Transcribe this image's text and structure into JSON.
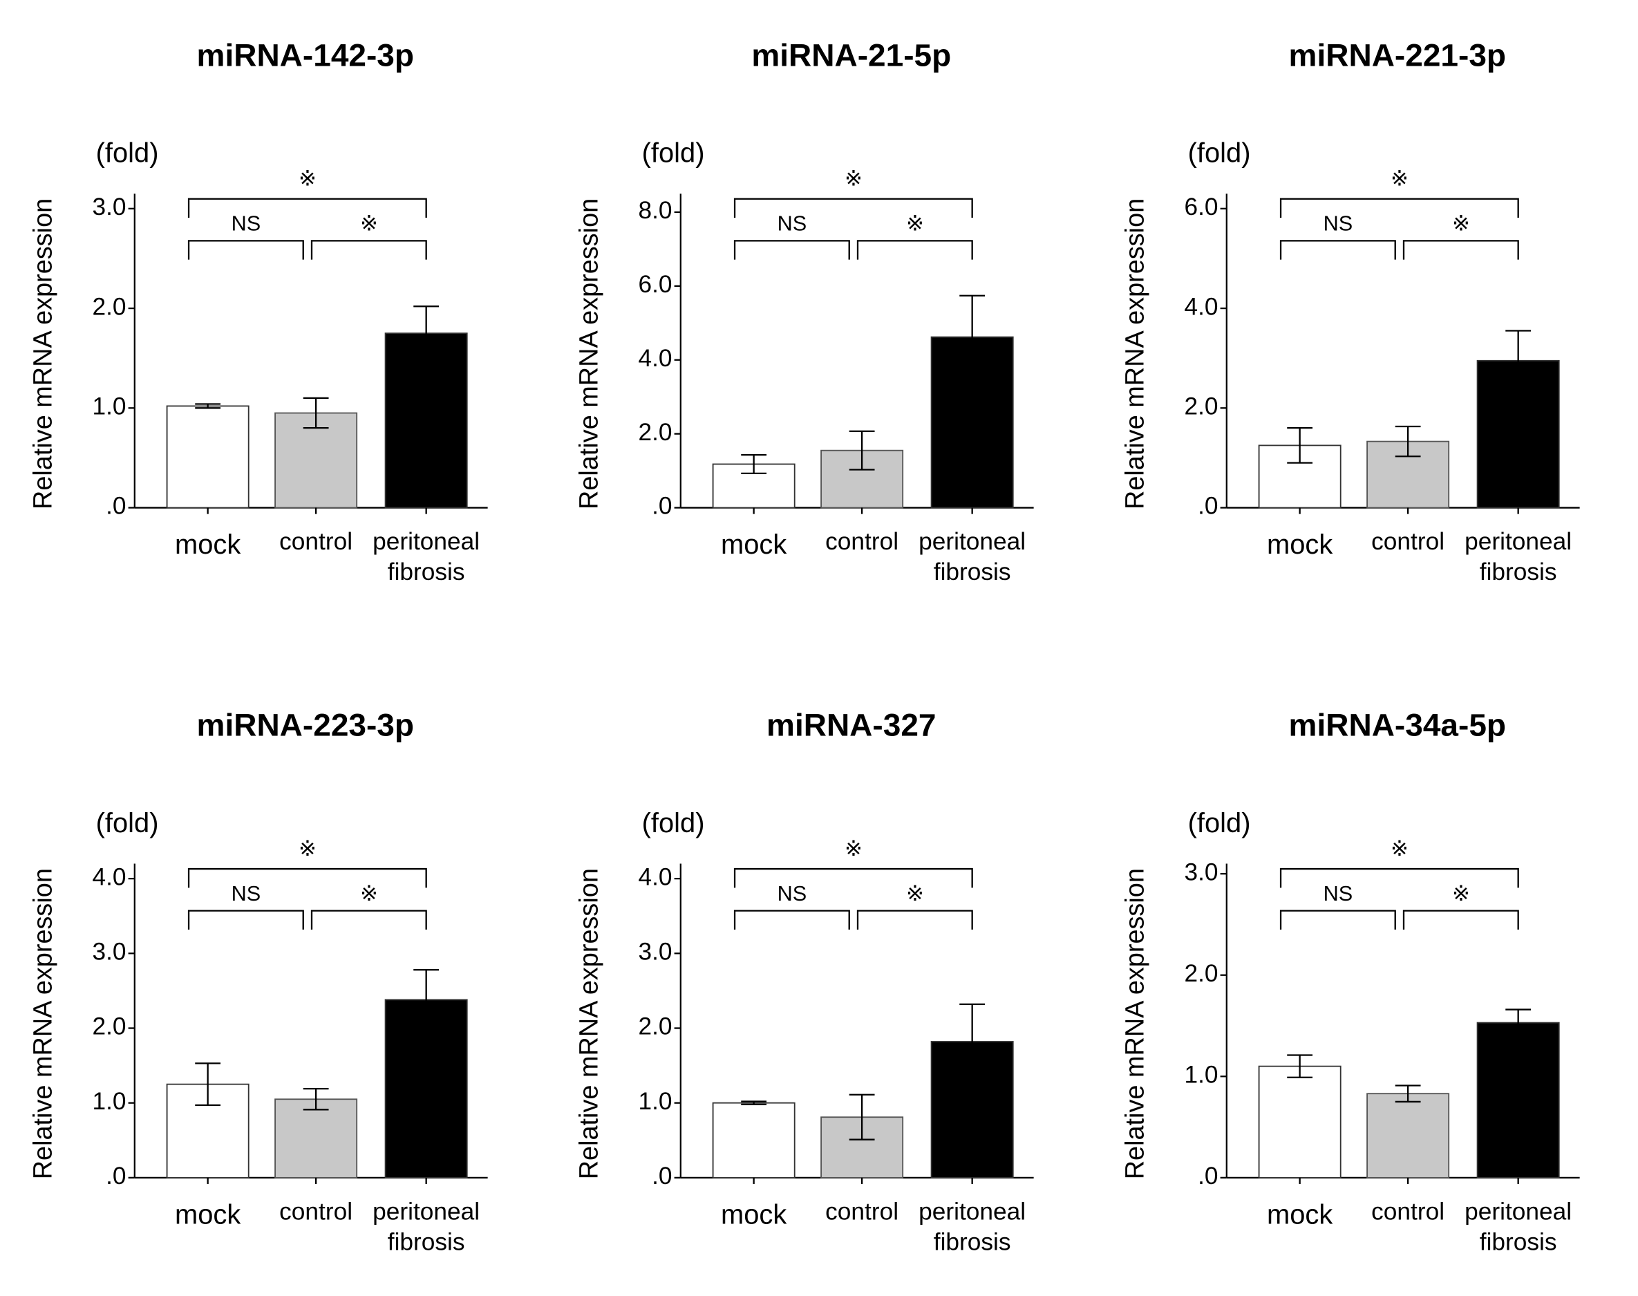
{
  "chart_data": [
    {
      "type": "bar",
      "title": "miRNA-142-3p",
      "unit": "(fold)",
      "ylabel": "Relative mRNA expression",
      "categories": [
        "mock",
        "control",
        "peritoneal fibrosis"
      ],
      "colors": [
        "#ffffff",
        "#c8c8c8",
        "#000000"
      ],
      "values": [
        1.02,
        0.95,
        1.75
      ],
      "errors": [
        0.02,
        0.15,
        0.27
      ],
      "ylim": [
        0,
        3.15
      ],
      "yticks": [
        {
          "value": 0,
          "label": ".0"
        },
        {
          "value": 1,
          "label": "1.0"
        },
        {
          "value": 2,
          "label": "2.0"
        },
        {
          "value": 3,
          "label": "3.0"
        }
      ],
      "annotations": [
        "NS",
        "※",
        "※"
      ]
    },
    {
      "type": "bar",
      "title": "miRNA-21-5p",
      "unit": "(fold)",
      "ylabel": "Relative mRNA expression",
      "categories": [
        "mock",
        "control",
        "peritoneal fibrosis"
      ],
      "colors": [
        "#ffffff",
        "#c8c8c8",
        "#000000"
      ],
      "values": [
        1.18,
        1.55,
        4.62
      ],
      "errors": [
        0.25,
        0.52,
        1.12
      ],
      "ylim": [
        0,
        8.5
      ],
      "yticks": [
        {
          "value": 0,
          "label": ".0"
        },
        {
          "value": 2,
          "label": "2.0"
        },
        {
          "value": 4,
          "label": "4.0"
        },
        {
          "value": 6,
          "label": "6.0"
        },
        {
          "value": 8,
          "label": "8.0"
        }
      ],
      "annotations": [
        "NS",
        "※",
        "※"
      ]
    },
    {
      "type": "bar",
      "title": "miRNA-221-3p",
      "unit": "(fold)",
      "ylabel": "Relative mRNA expression",
      "categories": [
        "mock",
        "control",
        "peritoneal fibrosis"
      ],
      "colors": [
        "#ffffff",
        "#c8c8c8",
        "#000000"
      ],
      "values": [
        1.25,
        1.33,
        2.95
      ],
      "errors": [
        0.35,
        0.3,
        0.6
      ],
      "ylim": [
        0,
        6.3
      ],
      "yticks": [
        {
          "value": 0,
          "label": ".0"
        },
        {
          "value": 2,
          "label": "2.0"
        },
        {
          "value": 4,
          "label": "4.0"
        },
        {
          "value": 6,
          "label": "6.0"
        }
      ],
      "annotations": [
        "NS",
        "※",
        "※"
      ]
    },
    {
      "type": "bar",
      "title": "miRNA-223-3p",
      "unit": "(fold)",
      "ylabel": "Relative mRNA expression",
      "categories": [
        "mock",
        "control",
        "peritoneal fibrosis"
      ],
      "colors": [
        "#ffffff",
        "#c8c8c8",
        "#000000"
      ],
      "values": [
        1.25,
        1.05,
        2.38
      ],
      "errors": [
        0.28,
        0.14,
        0.4
      ],
      "ylim": [
        0,
        4.2
      ],
      "yticks": [
        {
          "value": 0,
          "label": ".0"
        },
        {
          "value": 1,
          "label": "1.0"
        },
        {
          "value": 2,
          "label": "2.0"
        },
        {
          "value": 3,
          "label": "3.0"
        },
        {
          "value": 4,
          "label": "4.0"
        }
      ],
      "annotations": [
        "NS",
        "※",
        "※"
      ]
    },
    {
      "type": "bar",
      "title": "miRNA-327",
      "unit": "(fold)",
      "ylabel": "Relative mRNA expression",
      "categories": [
        "mock",
        "control",
        "peritoneal fibrosis"
      ],
      "colors": [
        "#ffffff",
        "#c8c8c8",
        "#000000"
      ],
      "values": [
        1.0,
        0.81,
        1.82
      ],
      "errors": [
        0.02,
        0.3,
        0.5
      ],
      "ylim": [
        0,
        4.2
      ],
      "yticks": [
        {
          "value": 0,
          "label": ".0"
        },
        {
          "value": 1,
          "label": "1.0"
        },
        {
          "value": 2,
          "label": "2.0"
        },
        {
          "value": 3,
          "label": "3.0"
        },
        {
          "value": 4,
          "label": "4.0"
        }
      ],
      "annotations": [
        "NS",
        "※",
        "※"
      ]
    },
    {
      "type": "bar",
      "title": "miRNA-34a-5p",
      "unit": "(fold)",
      "ylabel": "Relative mRNA expression",
      "categories": [
        "mock",
        "control",
        "peritoneal fibrosis"
      ],
      "colors": [
        "#ffffff",
        "#c8c8c8",
        "#000000"
      ],
      "values": [
        1.1,
        0.83,
        1.53
      ],
      "errors": [
        0.11,
        0.08,
        0.13
      ],
      "ylim": [
        0,
        3.1
      ],
      "yticks": [
        {
          "value": 0,
          "label": ".0"
        },
        {
          "value": 1,
          "label": "1.0"
        },
        {
          "value": 2,
          "label": "2.0"
        },
        {
          "value": 3,
          "label": "3.0"
        }
      ],
      "annotations": [
        "NS",
        "※",
        "※"
      ]
    }
  ]
}
